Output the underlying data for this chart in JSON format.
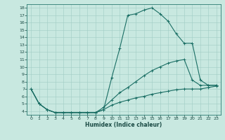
{
  "xlabel": "Humidex (Indice chaleur)",
  "bg_color": "#c8e8e0",
  "line_color": "#1a6e64",
  "grid_color": "#a0ccc4",
  "xlim": [
    -0.5,
    23.5
  ],
  "ylim": [
    3.5,
    18.5
  ],
  "xticks": [
    0,
    1,
    2,
    3,
    4,
    5,
    6,
    7,
    8,
    9,
    10,
    11,
    12,
    13,
    14,
    15,
    16,
    17,
    18,
    19,
    20,
    21,
    22,
    23
  ],
  "yticks": [
    4,
    5,
    6,
    7,
    8,
    9,
    10,
    11,
    12,
    13,
    14,
    15,
    16,
    17,
    18
  ],
  "line1_x": [
    0,
    1,
    2,
    3,
    4,
    5,
    6,
    7,
    8,
    9,
    10,
    11,
    12,
    13,
    14,
    15,
    16,
    17,
    18,
    19,
    20,
    21,
    22,
    23
  ],
  "line1_y": [
    7.0,
    5.0,
    4.2,
    3.8,
    3.8,
    3.8,
    3.8,
    3.8,
    3.8,
    4.2,
    8.5,
    12.5,
    17.0,
    17.2,
    17.7,
    18.0,
    17.2,
    16.2,
    14.5,
    13.2,
    13.2,
    8.2,
    7.5,
    7.5
  ],
  "line2_x": [
    0,
    1,
    2,
    3,
    4,
    5,
    6,
    7,
    8,
    9,
    10,
    11,
    12,
    13,
    14,
    15,
    16,
    17,
    18,
    19,
    20,
    21,
    22,
    23
  ],
  "line2_y": [
    7.0,
    5.0,
    4.2,
    3.8,
    3.8,
    3.8,
    3.8,
    3.8,
    3.8,
    4.5,
    5.5,
    6.5,
    7.2,
    8.0,
    8.8,
    9.5,
    10.0,
    10.5,
    10.8,
    11.0,
    8.2,
    7.5,
    7.5,
    7.5
  ],
  "line3_x": [
    0,
    1,
    2,
    3,
    4,
    5,
    6,
    7,
    8,
    9,
    10,
    11,
    12,
    13,
    14,
    15,
    16,
    17,
    18,
    19,
    20,
    21,
    22,
    23
  ],
  "line3_y": [
    7.0,
    5.0,
    4.2,
    3.8,
    3.8,
    3.8,
    3.8,
    3.8,
    3.8,
    4.2,
    4.8,
    5.2,
    5.5,
    5.8,
    6.0,
    6.3,
    6.5,
    6.7,
    6.9,
    7.0,
    7.0,
    7.0,
    7.2,
    7.4
  ]
}
